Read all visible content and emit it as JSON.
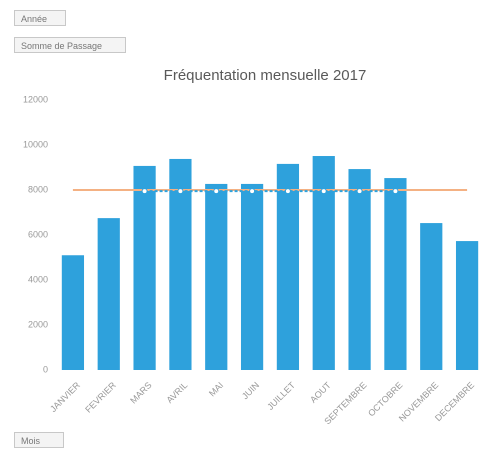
{
  "buttons": [
    "Année",
    "Somme de Passage",
    "Mois"
  ],
  "chart_data": {
    "type": "bar",
    "title": "Fréquentation mensuelle 2017",
    "categories": [
      "JANVIER",
      "FEVRIER",
      "MARS",
      "AVRIL",
      "MAI",
      "JUIN",
      "JUILLET",
      "AOUT",
      "SEPTEMBRE",
      "OCTOBRE",
      "NOVEMBRE",
      "DECEMBRE"
    ],
    "series": [
      {
        "color": "#2ea1dc",
        "values": [
          5100,
          6750,
          9070,
          9380,
          8270,
          8270,
          9160,
          9510,
          8930,
          8530,
          6530,
          5730
        ]
      },
      {
        "type": "line",
        "color": "#f4b183",
        "values": [
          8000,
          8000,
          8000,
          8000,
          8000,
          8000,
          8000,
          8000,
          8000,
          8000,
          8000,
          8000
        ]
      },
      {
        "type": "line",
        "color": "#2ea1dc",
        "dashed": true,
        "values": [
          null,
          null,
          7950,
          7950,
          7950,
          7950,
          7950,
          7950,
          7950,
          7950,
          null,
          null
        ]
      }
    ],
    "ylim": [
      0,
      12000
    ],
    "yticks": [
      0,
      2000,
      4000,
      6000,
      8000,
      10000,
      12000
    ],
    "grid": false
  }
}
